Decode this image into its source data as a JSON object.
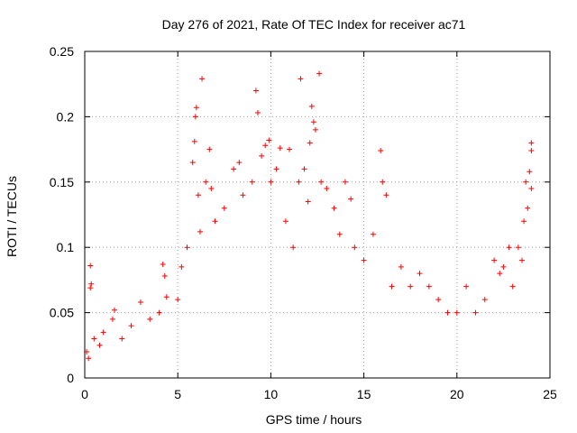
{
  "chart_data": {
    "type": "scatter",
    "title": "Day 276 of 2021, Rate Of TEC Index for receiver ac71",
    "xlabel": "GPS time / hours",
    "ylabel": "ROTI / TECUs",
    "xlim": [
      0,
      25
    ],
    "ylim": [
      0,
      0.25
    ],
    "xticks": [
      0,
      5,
      10,
      15,
      20,
      25
    ],
    "xtick_labels": [
      "0",
      "5",
      "10",
      "15",
      "20",
      "25"
    ],
    "yticks": [
      0,
      0.05,
      0.1,
      0.15,
      0.2,
      0.25
    ],
    "ytick_labels": [
      "0",
      "0.05",
      "0.1",
      "0.15",
      "0.2",
      "0.25"
    ],
    "grid": true,
    "marker": "+",
    "color": "#ff0000",
    "points": [
      [
        0.1,
        0.02
      ],
      [
        0.2,
        0.015
      ],
      [
        0.3,
        0.086
      ],
      [
        0.35,
        0.072
      ],
      [
        0.3,
        0.069
      ],
      [
        0.5,
        0.03
      ],
      [
        0.8,
        0.025
      ],
      [
        1.0,
        0.035
      ],
      [
        1.5,
        0.045
      ],
      [
        1.6,
        0.052
      ],
      [
        2.0,
        0.03
      ],
      [
        2.5,
        0.04
      ],
      [
        3.0,
        0.058
      ],
      [
        3.5,
        0.045
      ],
      [
        4.0,
        0.05
      ],
      [
        4.2,
        0.087
      ],
      [
        4.3,
        0.078
      ],
      [
        4.4,
        0.062
      ],
      [
        5.0,
        0.06
      ],
      [
        5.2,
        0.085
      ],
      [
        5.5,
        0.1
      ],
      [
        5.8,
        0.165
      ],
      [
        5.9,
        0.181
      ],
      [
        5.95,
        0.2
      ],
      [
        6.0,
        0.207
      ],
      [
        6.1,
        0.14
      ],
      [
        6.2,
        0.112
      ],
      [
        6.3,
        0.229
      ],
      [
        6.5,
        0.15
      ],
      [
        6.7,
        0.175
      ],
      [
        6.8,
        0.145
      ],
      [
        7.0,
        0.12
      ],
      [
        7.5,
        0.13
      ],
      [
        8.0,
        0.16
      ],
      [
        8.3,
        0.165
      ],
      [
        8.5,
        0.14
      ],
      [
        9.0,
        0.15
      ],
      [
        9.2,
        0.22
      ],
      [
        9.3,
        0.203
      ],
      [
        9.5,
        0.17
      ],
      [
        9.7,
        0.178
      ],
      [
        9.9,
        0.182
      ],
      [
        10.0,
        0.15
      ],
      [
        10.3,
        0.16
      ],
      [
        10.5,
        0.176
      ],
      [
        10.8,
        0.12
      ],
      [
        11.0,
        0.175
      ],
      [
        11.2,
        0.1
      ],
      [
        11.5,
        0.15
      ],
      [
        11.6,
        0.229
      ],
      [
        11.8,
        0.16
      ],
      [
        12.0,
        0.135
      ],
      [
        12.1,
        0.18
      ],
      [
        12.2,
        0.208
      ],
      [
        12.3,
        0.196
      ],
      [
        12.4,
        0.19
      ],
      [
        12.6,
        0.233
      ],
      [
        12.7,
        0.15
      ],
      [
        13.0,
        0.145
      ],
      [
        13.4,
        0.13
      ],
      [
        13.7,
        0.11
      ],
      [
        14.0,
        0.15
      ],
      [
        14.3,
        0.137
      ],
      [
        14.5,
        0.1
      ],
      [
        15.0,
        0.09
      ],
      [
        15.5,
        0.11
      ],
      [
        15.9,
        0.174
      ],
      [
        16.0,
        0.15
      ],
      [
        16.2,
        0.14
      ],
      [
        16.5,
        0.07
      ],
      [
        17.0,
        0.085
      ],
      [
        17.5,
        0.07
      ],
      [
        18.0,
        0.08
      ],
      [
        18.5,
        0.07
      ],
      [
        19.0,
        0.06
      ],
      [
        19.5,
        0.05
      ],
      [
        20.0,
        0.05
      ],
      [
        20.5,
        0.07
      ],
      [
        21.0,
        0.05
      ],
      [
        21.5,
        0.06
      ],
      [
        22.0,
        0.09
      ],
      [
        22.3,
        0.08
      ],
      [
        22.5,
        0.085
      ],
      [
        22.8,
        0.1
      ],
      [
        23.0,
        0.07
      ],
      [
        23.3,
        0.1
      ],
      [
        23.5,
        0.09
      ],
      [
        23.6,
        0.12
      ],
      [
        23.7,
        0.15
      ],
      [
        23.8,
        0.13
      ],
      [
        23.9,
        0.158
      ],
      [
        24.0,
        0.18
      ],
      [
        24.0,
        0.174
      ],
      [
        24.0,
        0.145
      ]
    ]
  }
}
